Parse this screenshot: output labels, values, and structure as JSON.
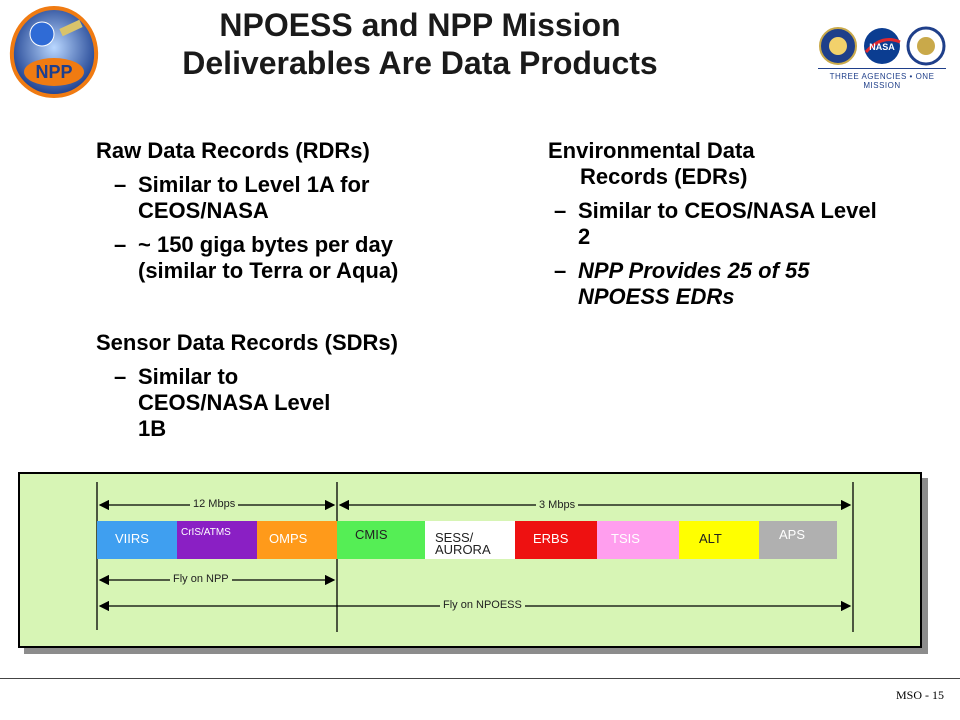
{
  "title": {
    "line1": "NPOESS and NPP Mission",
    "line2": "Deliverables Are Data Products"
  },
  "logos": {
    "npp": "npp-mission-logo",
    "agencies_caption": "THREE AGENCIES • ONE MISSION"
  },
  "left": {
    "rdr_heading": "Raw Data Records (RDRs)",
    "rdr_items": [
      "Similar to Level 1A  for CEOS/NASA",
      "~ 150 giga bytes per day (similar to Terra or Aqua)"
    ],
    "sdr_heading": "Sensor Data Records (SDRs)",
    "sdr_items": [
      "Similar to CEOS/NASA Level 1B"
    ]
  },
  "right": {
    "edr_heading_1": "Environmental Data",
    "edr_heading_2": "Records (EDRs)",
    "edr_item1": "Similar to CEOS/NASA Level 2",
    "edr_item2": "NPP Provides 25 of 55 NPOESS EDRs"
  },
  "dash": "–",
  "diagram": {
    "rate_npp": "12  Mbps",
    "rate_npoess": "3 Mbps",
    "fly_npp": "Fly on NPP",
    "fly_npoess": "Fly on NPOESS",
    "segments": [
      {
        "label": "VIIRS",
        "color": "#3f9ff0"
      },
      {
        "label": "CrIS/ATMS",
        "color": "#8a1fc4"
      },
      {
        "label": "OMPS",
        "color": "#ff9a1a"
      },
      {
        "label": "CMIS",
        "color": "#55ee55"
      },
      {
        "label_1": "SESS/",
        "label_2": "AURORA",
        "color": "#ffffff"
      },
      {
        "label": "ERBS",
        "color": "#ee1111"
      },
      {
        "label": "TSIS",
        "color": "#ff9eee"
      },
      {
        "label": "ALT",
        "color": "#ffff00"
      },
      {
        "label": "APS",
        "color": "#b0b0b0"
      }
    ]
  },
  "footer": "MSO - 15"
}
